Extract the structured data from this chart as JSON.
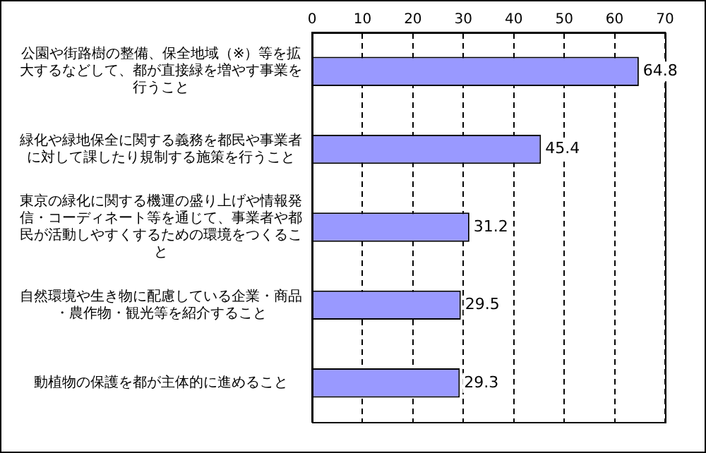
{
  "chart_data": {
    "type": "bar",
    "orientation": "horizontal",
    "categories": [
      "公園や街路樹の整備、保全地域（※）等を拡大するなどして、都が直接緑を増やす事業を行うこと",
      "緑化や緑地保全に関する義務を都民や事業者に対して課したり規制する施策を行うこと",
      "東京の緑化に関する機運の盛り上げや情報発信・コーディネート等を通じて、事業者や都民が活動しやすくするための環境をつくること",
      "自然環境や生き物に配慮している企業・商品・農作物・観光等を紹介すること",
      "動植物の保護を都が主体的に進めること"
    ],
    "values": [
      64.8,
      45.4,
      31.2,
      29.5,
      29.3
    ],
    "color": "#9999ff",
    "xlim": [
      0,
      70
    ],
    "xticks": [
      0,
      10,
      20,
      30,
      40,
      50,
      60,
      70
    ],
    "grid": "x",
    "data_labels": true
  }
}
